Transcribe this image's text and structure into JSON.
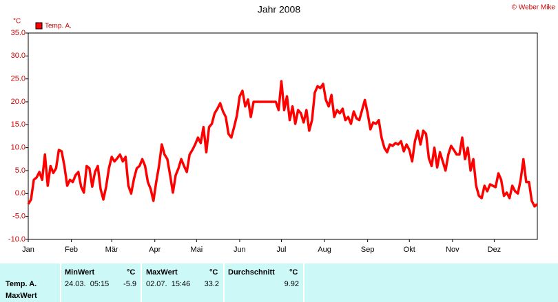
{
  "chart_data": {
    "type": "line",
    "title": "Jahr 2008",
    "credit": "© Weber Mike",
    "y_label": "°C",
    "xlim": [
      0,
      366
    ],
    "xticks": [
      {
        "value": 0,
        "label": "Jan"
      },
      {
        "value": 31,
        "label": "Feb"
      },
      {
        "value": 60,
        "label": "Mär"
      },
      {
        "value": 91,
        "label": "Apr"
      },
      {
        "value": 121,
        "label": "Mai"
      },
      {
        "value": 152,
        "label": "Jun"
      },
      {
        "value": 182,
        "label": "Jul"
      },
      {
        "value": 213,
        "label": "Aug"
      },
      {
        "value": 244,
        "label": "Sep"
      },
      {
        "value": 274,
        "label": "Okt"
      },
      {
        "value": 305,
        "label": "Nov"
      },
      {
        "value": 335,
        "label": "Dez"
      }
    ],
    "ylim": [
      -10,
      35
    ],
    "yticks": [
      {
        "value": -10,
        "label": "-10.0"
      },
      {
        "value": -5,
        "label": "-5.0"
      },
      {
        "value": 0,
        "label": "0.0"
      },
      {
        "value": 5,
        "label": "5.0"
      },
      {
        "value": 10,
        "label": "10.0"
      },
      {
        "value": 15,
        "label": "15.0"
      },
      {
        "value": 20,
        "label": "20.0"
      },
      {
        "value": 25,
        "label": "25.0"
      },
      {
        "value": 30,
        "label": "30.0"
      },
      {
        "value": 35,
        "label": "35.0"
      }
    ],
    "grid": true,
    "legend": "top-left",
    "x": [
      0,
      2,
      4,
      6,
      8,
      10,
      12,
      14,
      16,
      18,
      20,
      22,
      24,
      26,
      28,
      30,
      32,
      34,
      36,
      38,
      40,
      42,
      44,
      46,
      48,
      50,
      52,
      54,
      56,
      58,
      60,
      62,
      64,
      66,
      68,
      70,
      72,
      74,
      76,
      78,
      80,
      82,
      84,
      86,
      88,
      90,
      92,
      94,
      96,
      98,
      100,
      102,
      104,
      106,
      108,
      110,
      112,
      114,
      116,
      118,
      120,
      122,
      124,
      126,
      128,
      130,
      132,
      134,
      136,
      138,
      140,
      142,
      144,
      146,
      148,
      150,
      152,
      154,
      156,
      158,
      160,
      162,
      164,
      166,
      168,
      170,
      172,
      174,
      176,
      178,
      180,
      182,
      184,
      186,
      188,
      190,
      192,
      194,
      196,
      198,
      200,
      202,
      204,
      206,
      208,
      210,
      212,
      214,
      216,
      218,
      220,
      222,
      224,
      226,
      228,
      230,
      232,
      234,
      236,
      238,
      240,
      242,
      244,
      246,
      248,
      250,
      252,
      254,
      256,
      258,
      260,
      262,
      264,
      266,
      268,
      270,
      272,
      274,
      276,
      278,
      280,
      282,
      284,
      286,
      288,
      290,
      292,
      294,
      296,
      298,
      300,
      302,
      304,
      306,
      308,
      310,
      312,
      314,
      316,
      318,
      320,
      322,
      324,
      326,
      328,
      330,
      332,
      334,
      336,
      338,
      340,
      342,
      344,
      346,
      348,
      350,
      352,
      354,
      356,
      358,
      360,
      362,
      364,
      366
    ],
    "series": [
      {
        "name": "Temp. A.",
        "color": "#ff0000",
        "values": [
          -2.3,
          -1.3,
          3,
          3.5,
          4.7,
          3,
          8.5,
          1.7,
          6,
          4.5,
          5.5,
          9.5,
          9.2,
          6,
          1.7,
          3,
          2.5,
          4,
          4.7,
          1.5,
          0.2,
          6,
          5.5,
          1.5,
          4.7,
          6,
          1,
          -1.3,
          1.5,
          5.5,
          8,
          7,
          7.7,
          8.5,
          7,
          8,
          1.7,
          0,
          3.2,
          5.5,
          6,
          7.5,
          6,
          2.5,
          1,
          -1.6,
          2.5,
          6,
          10.7,
          8.5,
          7.5,
          4,
          0.2,
          4,
          5.5,
          7.5,
          6,
          4.7,
          8.5,
          9.5,
          10.7,
          12.2,
          11,
          14.5,
          9,
          14.5,
          15.2,
          17.5,
          18.5,
          19.7,
          17.9,
          16.7,
          13,
          12.2,
          14.5,
          17,
          21.2,
          22.4,
          19,
          20.5,
          16.7,
          20,
          20,
          20,
          20,
          20,
          20,
          20,
          20,
          20,
          18.2,
          24.5,
          18.2,
          21.2,
          16,
          19,
          15.2,
          18.2,
          17.5,
          15.5,
          18.2,
          13.7,
          16,
          22,
          23.4,
          23,
          23.9,
          20.4,
          19,
          21.5,
          16.7,
          18.2,
          17.5,
          18.5,
          16,
          16.7,
          15.2,
          17.9,
          16.4,
          16,
          18.2,
          20.4,
          17.5,
          14,
          15.5,
          15.2,
          16,
          12.2,
          10,
          9,
          10.7,
          10.4,
          11,
          10.7,
          11.4,
          9.2,
          10.7,
          9.5,
          7,
          11.4,
          13.7,
          10.7,
          13.7,
          13,
          7.7,
          6,
          10,
          5.7,
          9,
          7,
          5,
          8.5,
          10.4,
          9.5,
          8.5,
          8.5,
          12.2,
          7.5,
          10,
          5,
          7.5,
          1.7,
          -0.5,
          -1,
          1.7,
          0.5,
          2,
          1.7,
          1.4,
          4.4,
          3,
          -0.5,
          0.2,
          -1,
          1.7,
          0.5,
          0,
          3,
          7.5,
          2.5,
          2.5,
          -1.6,
          -2.8,
          -2.3
        ]
      }
    ]
  },
  "table": {
    "row_labels": [
      "Temp. A.",
      "MaxWert"
    ],
    "columns": [
      {
        "title": "MinWert",
        "unit": "°C",
        "time": "24.03.  05:15",
        "value": -5.9
      },
      {
        "title": "MaxWert",
        "unit": "°C",
        "time": "02.07.  15:46",
        "value": 33.2
      },
      {
        "title": "Durchschnitt",
        "unit": "°C",
        "value": 9.92
      }
    ]
  }
}
